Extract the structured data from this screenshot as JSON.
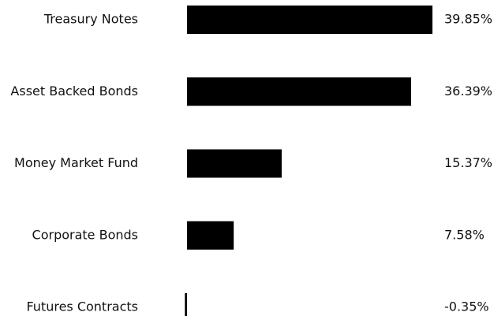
{
  "chart_data": {
    "type": "bar",
    "orientation": "horizontal",
    "categories": [
      "Treasury Notes",
      "Asset Backed Bonds",
      "Money Market Fund",
      "Corporate Bonds",
      "Futures Contracts"
    ],
    "values": [
      39.85,
      36.39,
      15.37,
      7.58,
      -0.35
    ],
    "value_labels": [
      "39.85%",
      "36.39%",
      "15.37%",
      "7.58%",
      "-0.35%"
    ],
    "color": "#000000"
  }
}
